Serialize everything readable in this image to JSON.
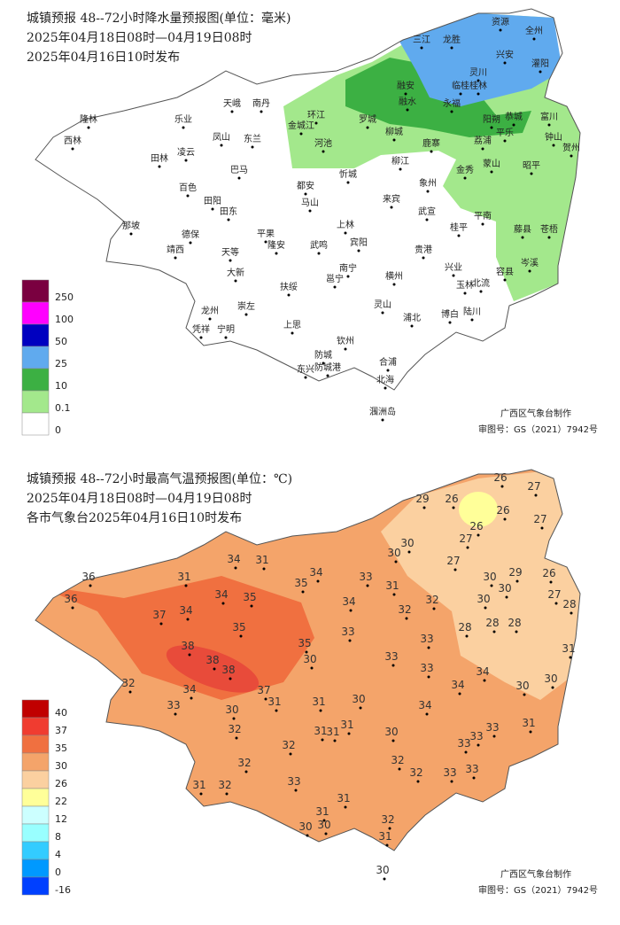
{
  "panels": [
    {
      "title": [
        "城镇预报 48--72小时降水量预报图(单位：毫米)",
        "2025年04月18日08时—04月19日08时",
        "2025年04月16日10时发布"
      ],
      "legend": [
        250,
        100,
        50,
        25,
        10,
        0.1,
        0
      ],
      "credits": [
        "广西区气象台制作",
        "审图号：GS（2021）7942号"
      ],
      "cities": [
        "资源",
        "全州",
        "三江",
        "龙胜",
        "兴安",
        "灌阳",
        "灵川",
        "临桂",
        "桂林",
        "融安",
        "融水",
        "永福",
        "环江",
        "罗城",
        "金城江",
        "河池",
        "柳城",
        "鹿寨",
        "柳江",
        "天峨",
        "南丹",
        "乐业",
        "凤山",
        "东兰",
        "隆林",
        "西林",
        "凌云",
        "田林",
        "巴马",
        "百色",
        "田阳",
        "田东",
        "都安",
        "马山",
        "忻城",
        "象州",
        "来宾",
        "武宣",
        "上林",
        "宾阳",
        "桂平",
        "平南",
        "藤县",
        "苍梧",
        "阳朔",
        "恭城",
        "平乐",
        "荔浦",
        "富川",
        "钟山",
        "贺州",
        "蒙山",
        "金秀",
        "昭平",
        "岑溪",
        "容县",
        "北流",
        "玉林",
        "陆川",
        "博白",
        "兴业",
        "贵港",
        "横州",
        "灵山",
        "浦北",
        "武鸣",
        "南宁",
        "邕宁",
        "隆安",
        "平果",
        "德保",
        "靖西",
        "那坡",
        "天等",
        "大新",
        "扶绥",
        "崇左",
        "龙州",
        "凭祥",
        "宁明",
        "上思",
        "钦州",
        "防城",
        "东兴",
        "防城港",
        "合浦",
        "北海",
        "涠洲岛"
      ]
    },
    {
      "title": [
        "城镇预报 48--72小时最高气温预报图(单位：℃)",
        "2025年04月18日08时—04月19日08时",
        "各市气象台2025年04月16日10时发布"
      ],
      "legend": [
        40,
        37,
        35,
        30,
        26,
        22,
        12,
        8,
        4,
        0,
        -16
      ],
      "credits": [
        "广西区气象台制作",
        "审图号：GS（2021）7942号"
      ],
      "values": [
        26,
        27,
        29,
        26,
        26,
        26,
        27,
        30,
        27,
        30,
        27,
        34,
        31,
        31,
        36,
        36,
        34,
        35,
        35,
        34,
        33,
        31,
        30,
        29,
        30,
        26,
        27,
        28,
        34,
        32,
        32,
        30,
        37,
        34,
        35,
        38,
        38,
        38,
        35,
        30,
        33,
        33,
        28,
        28,
        28,
        33,
        33,
        31,
        32,
        34,
        37,
        31,
        33,
        30,
        31,
        30,
        34,
        34,
        34,
        30,
        30,
        32,
        31,
        31,
        31,
        30,
        33,
        33,
        31,
        32,
        33,
        32,
        32,
        32,
        33,
        33,
        33,
        31,
        32,
        31,
        31,
        30,
        30,
        32,
        31,
        30
      ]
    }
  ]
}
